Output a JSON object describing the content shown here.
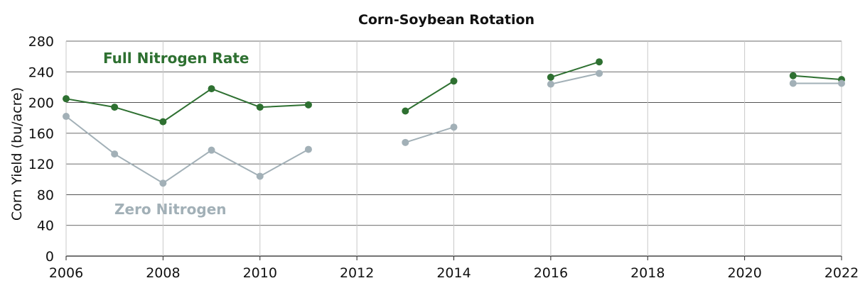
{
  "chart_data": {
    "type": "line",
    "title": "Corn-Soybean Rotation",
    "xlabel": "",
    "ylabel": "Corn Yield (bu/acre)",
    "xlim": [
      2006,
      2022
    ],
    "ylim": [
      0,
      280
    ],
    "x_ticks": [
      2006,
      2008,
      2010,
      2012,
      2014,
      2016,
      2018,
      2020,
      2022
    ],
    "y_ticks": [
      0,
      40,
      80,
      120,
      160,
      200,
      240,
      280
    ],
    "grid": true,
    "legend": "inline labels",
    "series": [
      {
        "name": "Full Nitrogen Rate",
        "color": "#2e7031",
        "segments": [
          [
            [
              2006,
              205
            ],
            [
              2007,
              194
            ],
            [
              2008,
              175
            ],
            [
              2009,
              218
            ],
            [
              2010,
              194
            ],
            [
              2011,
              197
            ]
          ],
          [
            [
              2013,
              189
            ],
            [
              2014,
              228
            ]
          ],
          [
            [
              2016,
              233
            ],
            [
              2017,
              253
            ]
          ],
          [
            [
              2021,
              235
            ],
            [
              2022,
              230
            ]
          ]
        ]
      },
      {
        "name": "Zero Nitrogen",
        "color": "#a2b0b7",
        "segments": [
          [
            [
              2006,
              182
            ],
            [
              2007,
              133
            ],
            [
              2008,
              95
            ],
            [
              2009,
              138
            ],
            [
              2010,
              104
            ],
            [
              2011,
              139
            ]
          ],
          [
            [
              2013,
              148
            ],
            [
              2014,
              168
            ]
          ],
          [
            [
              2016,
              224
            ],
            [
              2017,
              238
            ]
          ],
          [
            [
              2021,
              225
            ],
            [
              2022,
              225
            ]
          ]
        ]
      }
    ]
  }
}
